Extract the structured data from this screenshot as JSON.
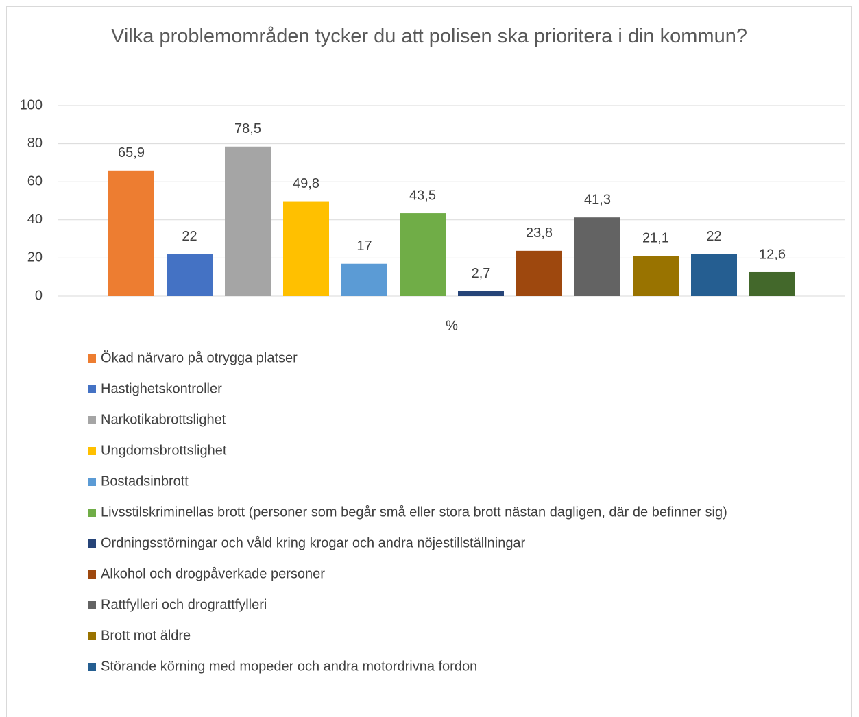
{
  "chart_data": {
    "type": "bar",
    "title": "Vilka problemområden tycker du att polisen ska prioritera i din kommun?",
    "categories": [
      "%"
    ],
    "ylim": [
      0,
      100
    ],
    "yticks": [
      0,
      20,
      40,
      60,
      80,
      100
    ],
    "grid": true,
    "legend": "bottom",
    "series": [
      {
        "name": "Ökad närvaro på otrygga platser",
        "color": "#ED7D31",
        "values": [
          65.9
        ],
        "value_labels": [
          "65,9"
        ]
      },
      {
        "name": "Hastighetskontroller",
        "color": "#4472C4",
        "values": [
          22
        ]
      },
      {
        "name": "Narkotikabrottslighet",
        "color": "#A5A5A5",
        "values": [
          78.5
        ],
        "value_labels": [
          "78,5"
        ]
      },
      {
        "name": "Ungdomsbrottslighet",
        "color": "#FFC000",
        "values": [
          49.8
        ],
        "value_labels": [
          "49,8"
        ]
      },
      {
        "name": "Bostadsinbrott",
        "color": "#5B9BD5",
        "values": [
          17
        ]
      },
      {
        "name": "Livsstilskriminellas brott (personer som begår små eller stora brott nästan dagligen, där de befinner sig)",
        "color": "#70AD47",
        "values": [
          43.5
        ],
        "value_labels": [
          "43,5"
        ]
      },
      {
        "name": "Ordningsstörningar och våld kring krogar och andra nöjestillställningar",
        "color": "#264478",
        "values": [
          2.7
        ],
        "value_labels": [
          "2,7"
        ]
      },
      {
        "name": "Alkohol och drogpåverkade personer",
        "color": "#9E480E",
        "values": [
          23.8
        ],
        "value_labels": [
          "23,8"
        ]
      },
      {
        "name": "Rattfylleri och drograttfylleri",
        "color": "#636363",
        "values": [
          41.3
        ],
        "value_labels": [
          "41,3"
        ]
      },
      {
        "name": "Brott mot äldre",
        "color": "#997300",
        "values": [
          21.1
        ],
        "value_labels": [
          "21,1"
        ]
      },
      {
        "name": "Störande körning med mopeder och andra motordrivna fordon",
        "color": "#255E91",
        "values": [
          22
        ]
      },
      {
        "name": null,
        "color": "#43682B",
        "values": [
          12.6
        ],
        "value_labels": [
          "12,6"
        ]
      }
    ]
  }
}
